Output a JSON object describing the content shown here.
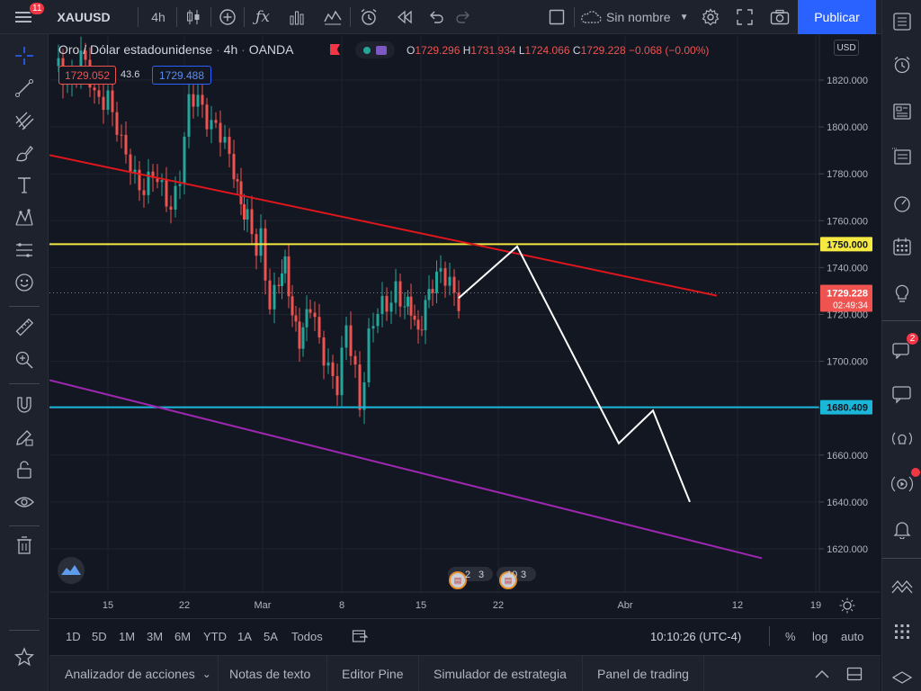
{
  "topbar": {
    "notification_count": "11",
    "symbol": "XAUUSD",
    "interval": "4h",
    "layout_name": "Sin nombre",
    "publish_label": "Publicar"
  },
  "legend": {
    "title": "Oro / Dólar estadounidense",
    "interval": "4h",
    "source": "OANDA",
    "o_label": "O",
    "o_value": "1729.296",
    "h_label": "H",
    "h_value": "1731.934",
    "l_label": "L",
    "l_value": "1724.066",
    "c_label": "C",
    "c_value": "1729.228",
    "change": "−0.068 (−0.00%)",
    "sell_price": "1729.052",
    "spread": "43.6",
    "buy_price": "1729.488"
  },
  "price_axis": {
    "currency": "USD",
    "ticks": [
      "1820.000",
      "1800.000",
      "1780.000",
      "1760.000",
      "1740.000",
      "1720.000",
      "1700.000",
      "1680.000",
      "1660.000",
      "1640.000",
      "1620.000"
    ],
    "current_price": "1729.228",
    "countdown": "02:49:34",
    "yellow_level": "1750.000",
    "cyan_level": "1680.409"
  },
  "time_axis": {
    "ticks": [
      "15",
      "22",
      "Mar",
      "8",
      "15",
      "22",
      "Abr",
      "12",
      "19"
    ]
  },
  "events": {
    "first": {
      "a": "2",
      "b": "3"
    },
    "second": {
      "a": "10",
      "b": "3"
    }
  },
  "bottombar": {
    "ranges": [
      "1D",
      "5D",
      "1M",
      "3M",
      "6M",
      "YTD",
      "1A",
      "5A",
      "Todos"
    ],
    "clock": "10:10:26 (UTC-4)",
    "percent": "%",
    "log": "log",
    "auto": "auto"
  },
  "panels": {
    "tabs": [
      "Analizador de acciones",
      "Notas de texto",
      "Editor Pine",
      "Simulador de estrategia",
      "Panel de trading"
    ]
  },
  "rightbar": {
    "chat_badge": "2"
  },
  "colors": {
    "up": "#26a69a",
    "down": "#ef5350",
    "accent": "#2962ff",
    "trend_red": "#e0161d",
    "level_yellow": "#f5e942",
    "level_cyan": "#1bb7d9",
    "channel_purple": "#9c27b0",
    "projection": "#ffffff"
  }
}
